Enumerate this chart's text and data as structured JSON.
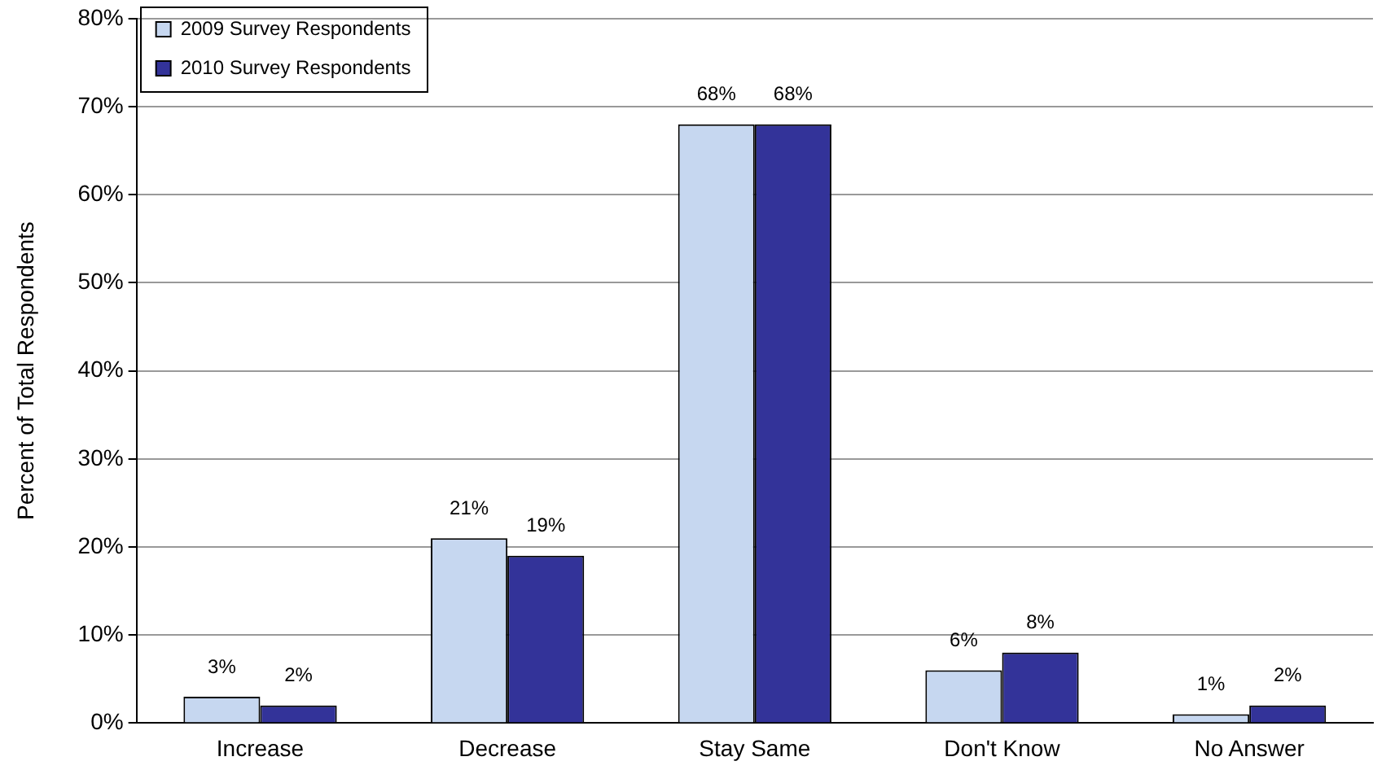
{
  "chart_data": {
    "type": "bar",
    "ylabel": "Percent of Total Respondents",
    "categories": [
      "Increase",
      "Decrease",
      "Stay Same",
      "Don't Know",
      "No Answer"
    ],
    "series": [
      {
        "name": "2009 Survey Respondents",
        "color": "#c6d7f0",
        "values": [
          3,
          21,
          68,
          6,
          1
        ],
        "value_labels": [
          "3%",
          "21%",
          "68%",
          "6%",
          "1%"
        ]
      },
      {
        "name": "2010 Survey Respondents",
        "color": "#333399",
        "values": [
          2,
          19,
          68,
          8,
          2
        ],
        "value_labels": [
          "2%",
          "19%",
          "68%",
          "8%",
          "2%"
        ]
      }
    ],
    "ylim": [
      0,
      80
    ],
    "yticks": [
      {
        "value": 0,
        "label": "0%"
      },
      {
        "value": 10,
        "label": "10%"
      },
      {
        "value": 20,
        "label": "20%"
      },
      {
        "value": 30,
        "label": "30%"
      },
      {
        "value": 40,
        "label": "40%"
      },
      {
        "value": 50,
        "label": "50%"
      },
      {
        "value": 60,
        "label": "60%"
      },
      {
        "value": 70,
        "label": "70%"
      },
      {
        "value": 80,
        "label": "80%"
      }
    ],
    "grid": "y",
    "legend": "top left"
  }
}
